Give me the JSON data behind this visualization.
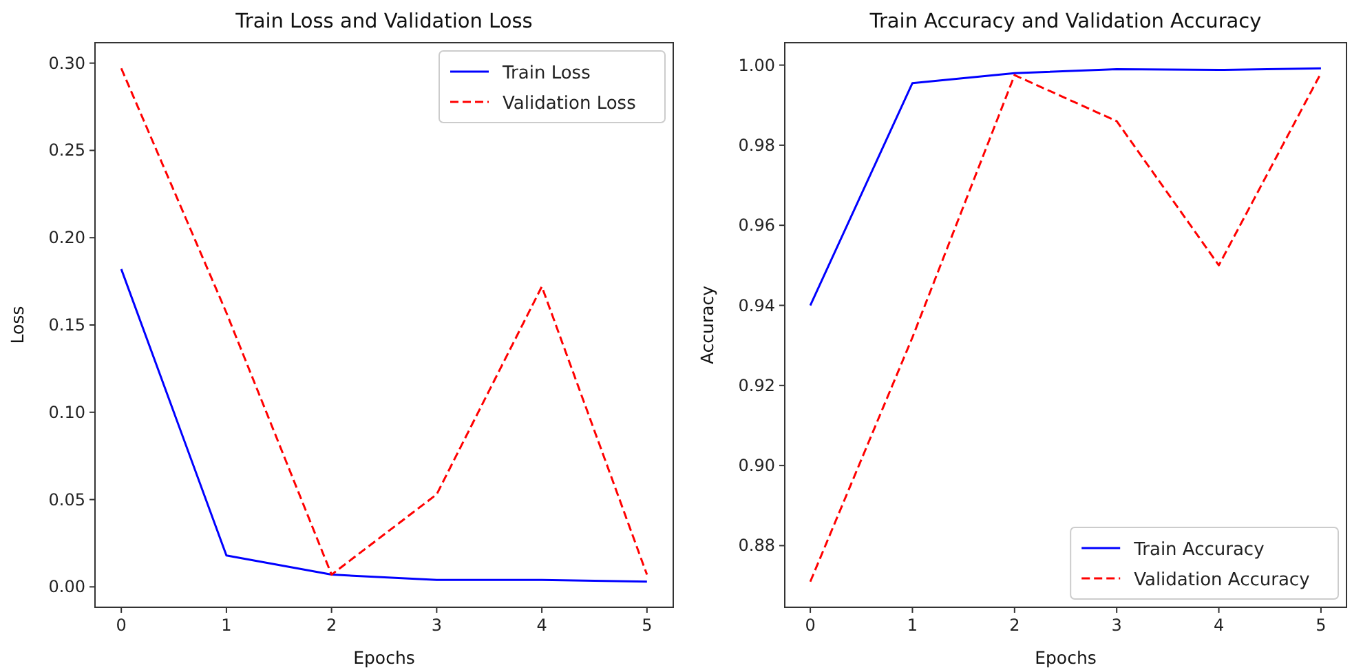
{
  "chart_data": [
    {
      "type": "line",
      "title": "Train Loss and Validation Loss",
      "xlabel": "Epochs",
      "ylabel": "Loss",
      "x": [
        0,
        1,
        2,
        3,
        4,
        5
      ],
      "xlim": [
        -0.25,
        5.25
      ],
      "xticks": [
        0,
        1,
        2,
        3,
        4,
        5
      ],
      "ylim": [
        -0.0117,
        0.3117
      ],
      "yticks": [
        {
          "value": 0,
          "label": "0.00"
        },
        {
          "value": 0.05,
          "label": "0.05"
        },
        {
          "value": 0.1,
          "label": "0.10"
        },
        {
          "value": 0.15,
          "label": "0.15"
        },
        {
          "value": 0.2,
          "label": "0.20"
        },
        {
          "value": 0.25,
          "label": "0.25"
        },
        {
          "value": 0.3,
          "label": "0.30"
        }
      ],
      "legend": "top right",
      "grid": false,
      "series": [
        {
          "name": "Train Loss",
          "color": "#0000ff",
          "line_style": "solid",
          "values": [
            0.182,
            0.018,
            0.007,
            0.004,
            0.004,
            0.003
          ]
        },
        {
          "name": "Validation Loss",
          "color": "#ff0000",
          "line_style": "dashed",
          "values": [
            0.297,
            0.157,
            0.007,
            0.053,
            0.172,
            0.007
          ]
        }
      ]
    },
    {
      "type": "line",
      "title": "Train Accuracy and Validation Accuracy",
      "xlabel": "Epochs",
      "ylabel": "Accuracy",
      "x": [
        0,
        1,
        2,
        3,
        4,
        5
      ],
      "xlim": [
        -0.25,
        5.25
      ],
      "xticks": [
        0,
        1,
        2,
        3,
        4,
        5
      ],
      "ylim": [
        0.8646,
        1.0056
      ],
      "yticks": [
        {
          "value": 0.88,
          "label": "0.88"
        },
        {
          "value": 0.9,
          "label": "0.90"
        },
        {
          "value": 0.92,
          "label": "0.92"
        },
        {
          "value": 0.94,
          "label": "0.94"
        },
        {
          "value": 0.96,
          "label": "0.96"
        },
        {
          "value": 0.98,
          "label": "0.98"
        },
        {
          "value": 1,
          "label": "1.00"
        }
      ],
      "legend": "bottom right",
      "grid": false,
      "series": [
        {
          "name": "Train Accuracy",
          "color": "#0000ff",
          "line_style": "solid",
          "values": [
            0.94,
            0.9955,
            0.998,
            0.999,
            0.9988,
            0.9992
          ]
        },
        {
          "name": "Validation Accuracy",
          "color": "#ff0000",
          "line_style": "dashed",
          "values": [
            0.871,
            0.932,
            0.9975,
            0.986,
            0.95,
            0.998
          ]
        }
      ]
    }
  ]
}
